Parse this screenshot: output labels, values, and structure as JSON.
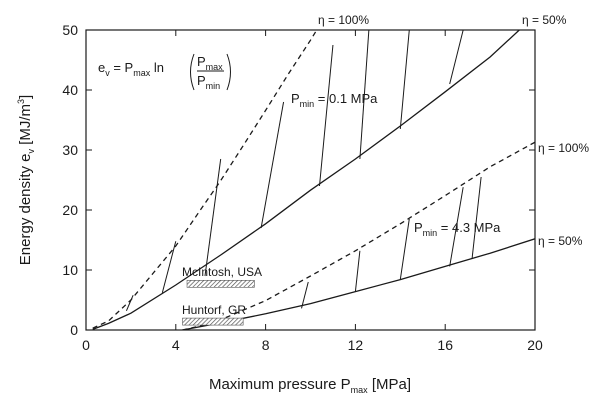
{
  "chart_data": {
    "type": "line",
    "xlabel": "Maximum pressure P",
    "xlabel_sub": "max",
    "xlabel_unit": " [MPa]",
    "ylabel": "Energy density e",
    "ylabel_sub": "v",
    "ylabel_unit": " [MJ/m",
    "ylabel_sup": "3",
    "ylabel_close": "]",
    "xlim": [
      0,
      20
    ],
    "ylim": [
      0,
      50
    ],
    "x_ticks": [
      "0",
      "4",
      "8",
      "12",
      "16",
      "20"
    ],
    "y_ticks": [
      "0",
      "10",
      "20",
      "30",
      "40",
      "50"
    ],
    "formula": {
      "lhs": "e",
      "lhs_sub": "v",
      "eq": " = P",
      "eq_sub": "max",
      "ln": " ln",
      "num": "P",
      "num_sub": "max",
      "den": "P",
      "den_sub": "min"
    },
    "groups": [
      {
        "label_main": "P",
        "label_sub": "min",
        "label_value": " = 0.1 MPa",
        "eta100_label": "η = 100%",
        "eta50_label": "η = 50%",
        "eta100": {
          "x": [
            0.3,
            1,
            2,
            3,
            4,
            5,
            6,
            7,
            8,
            9,
            10,
            10.6
          ],
          "y": [
            0.3,
            1.5,
            5,
            9.5,
            14,
            19.5,
            24.9,
            30.7,
            36.6,
            42.6,
            48.3,
            52
          ]
        },
        "eta50": {
          "x": [
            0.3,
            1,
            2,
            4,
            6,
            8,
            10,
            12,
            14,
            16,
            18,
            19.3
          ],
          "y": [
            0.1,
            1.1,
            2.8,
            7.5,
            12.5,
            17.7,
            23.3,
            28.5,
            34,
            39.7,
            45.5,
            50
          ]
        },
        "hatch": [
          {
            "x": [
              1.8,
              2.1
            ],
            "y": [
              3.2,
              5.8
            ]
          },
          {
            "x": [
              3.4,
              4.0
            ],
            "y": [
              6.2,
              14.8
            ]
          },
          {
            "x": [
              5.3,
              6.0
            ],
            "y": [
              9.0,
              28.5
            ]
          },
          {
            "x": [
              7.8,
              8.8
            ],
            "y": [
              17.0,
              38.0
            ]
          },
          {
            "x": [
              10.4,
              11.0
            ],
            "y": [
              24.0,
              47.5
            ]
          },
          {
            "x": [
              12.2,
              12.6
            ],
            "y": [
              28.5,
              50
            ]
          },
          {
            "x": [
              14.0,
              14.4
            ],
            "y": [
              33.5,
              50
            ]
          },
          {
            "x": [
              16.2,
              16.8
            ],
            "y": [
              41.0,
              50
            ]
          }
        ]
      },
      {
        "label_main": "P",
        "label_sub": "min",
        "label_value": " = 4.3 MPa",
        "eta100_label": "η = 100%",
        "eta50_label": "η = 50%",
        "eta100": {
          "x": [
            4.3,
            5,
            6,
            8,
            10,
            12,
            14,
            16,
            18,
            20
          ],
          "y": [
            0,
            0.6,
            1.7,
            4.9,
            9.0,
            13.2,
            17.7,
            22.4,
            27.2,
            31.3
          ]
        },
        "eta50": {
          "x": [
            4.3,
            6,
            8,
            10,
            12,
            14,
            16,
            18,
            20
          ],
          "y": [
            0,
            1.2,
            2.7,
            4.4,
            6.4,
            8.4,
            10.6,
            12.8,
            15.2
          ]
        },
        "hatch": [
          {
            "x": [
              9.6,
              9.9
            ],
            "y": [
              3.6,
              8.0
            ]
          },
          {
            "x": [
              12.0,
              12.2
            ],
            "y": [
              6.4,
              13.2
            ]
          },
          {
            "x": [
              14.0,
              14.4
            ],
            "y": [
              8.4,
              18.5
            ]
          },
          {
            "x": [
              16.2,
              16.8
            ],
            "y": [
              10.6,
              23.8
            ]
          },
          {
            "x": [
              17.2,
              17.6
            ],
            "y": [
              12.0,
              25.5
            ]
          }
        ]
      }
    ],
    "annotations": [
      {
        "label": "McIntosh, USA",
        "range": [
          4.5,
          7.5
        ],
        "y": 7.7
      },
      {
        "label": "Huntorf, GR",
        "range": [
          4.3,
          7.0
        ],
        "y": 1.4
      }
    ]
  }
}
